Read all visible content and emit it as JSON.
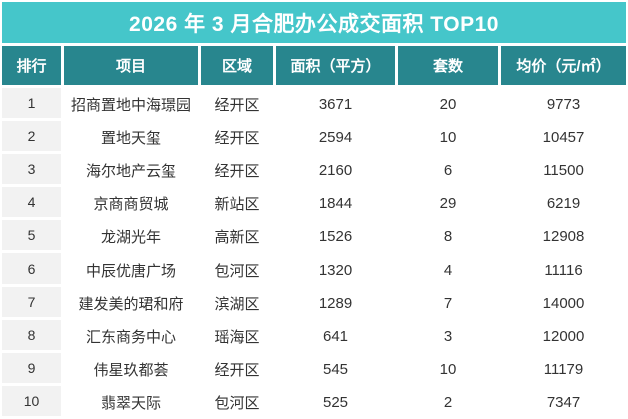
{
  "colors": {
    "title_bg": "#45c6ca",
    "header_bg": "#28868e",
    "rank_cell_bg": "#f2f2f2",
    "header_text": "#ffffff",
    "body_text": "#333333"
  },
  "chart_data": {
    "type": "table",
    "title": "2026 年 3 月合肥办公成交面积 TOP10",
    "columns": [
      "排行",
      "项目",
      "区域",
      "面积（平方）",
      "套数",
      "均价（元/㎡）"
    ],
    "rows": [
      {
        "rank": "1",
        "project": "招商置地中海璟园",
        "district": "经开区",
        "area": "3671",
        "units": "20",
        "price": "9773"
      },
      {
        "rank": "2",
        "project": "置地天玺",
        "district": "经开区",
        "area": "2594",
        "units": "10",
        "price": "10457"
      },
      {
        "rank": "3",
        "project": "海尔地产云玺",
        "district": "经开区",
        "area": "2160",
        "units": "6",
        "price": "11500"
      },
      {
        "rank": "4",
        "project": "京商商贸城",
        "district": "新站区",
        "area": "1844",
        "units": "29",
        "price": "6219"
      },
      {
        "rank": "5",
        "project": "龙湖光年",
        "district": "高新区",
        "area": "1526",
        "units": "8",
        "price": "12908"
      },
      {
        "rank": "6",
        "project": "中辰优唐广场",
        "district": "包河区",
        "area": "1320",
        "units": "4",
        "price": "11116"
      },
      {
        "rank": "7",
        "project": "建发美的珺和府",
        "district": "滨湖区",
        "area": "1289",
        "units": "7",
        "price": "14000"
      },
      {
        "rank": "8",
        "project": "汇东商务中心",
        "district": "瑶海区",
        "area": "641",
        "units": "3",
        "price": "12000"
      },
      {
        "rank": "9",
        "project": "伟星玖都荟",
        "district": "经开区",
        "area": "545",
        "units": "10",
        "price": "11179"
      },
      {
        "rank": "10",
        "project": "翡翠天际",
        "district": "包河区",
        "area": "525",
        "units": "2",
        "price": "7347"
      }
    ]
  }
}
